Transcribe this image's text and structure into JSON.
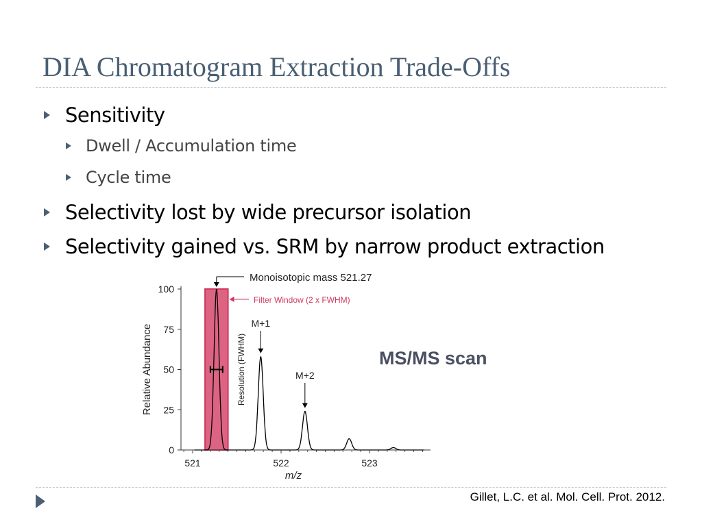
{
  "slide": {
    "title": "DIA Chromatogram Extraction Trade-Offs",
    "bullets": [
      {
        "text": "Sensitivity",
        "level": 1
      },
      {
        "text": "Dwell / Accumulation time",
        "level": 2
      },
      {
        "text": "Cycle time",
        "level": 2
      },
      {
        "text": "Selectivity lost by wide precursor isolation",
        "level": 1
      },
      {
        "text": "Selectivity gained vs. SRM by narrow product extraction",
        "level": 1
      }
    ],
    "msms_label": "MS/MS scan",
    "citation": "Gillet, L.C.  et al.  Mol. Cell. Prot. 2012.",
    "accent_color": "#4a5f73"
  },
  "chart_data": {
    "type": "line",
    "xlabel": "m/z",
    "ylabel": "Relative Abundance",
    "xlim": [
      520.9,
      523.7
    ],
    "ylim": [
      0,
      100
    ],
    "x_ticks": [
      521,
      522,
      523
    ],
    "y_ticks": [
      0,
      25,
      50,
      75,
      100
    ],
    "peaks": [
      {
        "x": 521.27,
        "height": 100,
        "width": 0.07
      },
      {
        "x": 521.77,
        "height": 58,
        "width": 0.07
      },
      {
        "x": 522.27,
        "height": 24,
        "width": 0.07
      },
      {
        "x": 522.77,
        "height": 7,
        "width": 0.07
      },
      {
        "x": 523.27,
        "height": 1.5,
        "width": 0.07
      }
    ],
    "filter_window": {
      "x_start": 521.14,
      "x_end": 521.4,
      "color": "#d2385f"
    },
    "annotations": {
      "monoisotopic": "Monoisotopic mass 521.27",
      "filter": "Filter Window (2 x FWHM)",
      "resolution": "Resolution (FWHM)",
      "m1": "M+1",
      "m2": "M+2"
    }
  }
}
